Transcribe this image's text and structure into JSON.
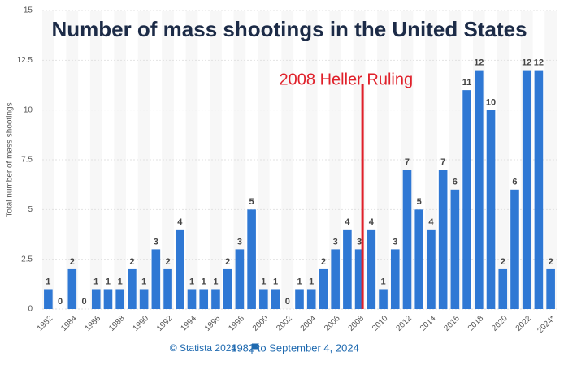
{
  "chart_data": {
    "type": "bar",
    "title": "Number of mass shootings in the United States",
    "y_label": "Total number of mass shootings",
    "categories": [
      "1982",
      null,
      "1984",
      null,
      "1986",
      null,
      "1988",
      null,
      "1990",
      null,
      "1992",
      null,
      "1994",
      null,
      "1996",
      null,
      "1998",
      null,
      "2000",
      null,
      "2002",
      null,
      "2004",
      null,
      "2006",
      null,
      "2008",
      null,
      "2010",
      null,
      "2012",
      null,
      "2014",
      null,
      "2016",
      null,
      "2018",
      null,
      "2020",
      null,
      "2022",
      null,
      "2024*"
    ],
    "values": [
      1,
      0,
      2,
      0,
      1,
      1,
      1,
      2,
      1,
      3,
      2,
      4,
      1,
      1,
      1,
      2,
      3,
      5,
      1,
      1,
      0,
      1,
      1,
      2,
      3,
      4,
      3,
      4,
      1,
      3,
      7,
      5,
      4,
      7,
      6,
      11,
      12,
      10,
      2,
      6,
      12,
      12,
      2
    ],
    "color": "#2f78d4",
    "ylim": [
      0,
      15
    ],
    "yticks": [
      0,
      2.5,
      5,
      7.5,
      10,
      12.5,
      15
    ],
    "grid": true,
    "annotation": {
      "text": "2008 Heller Ruling",
      "category": "2008",
      "color": "#e0202a"
    },
    "source": "© Statista 2024",
    "period": "1982 to September 4, 2024"
  }
}
